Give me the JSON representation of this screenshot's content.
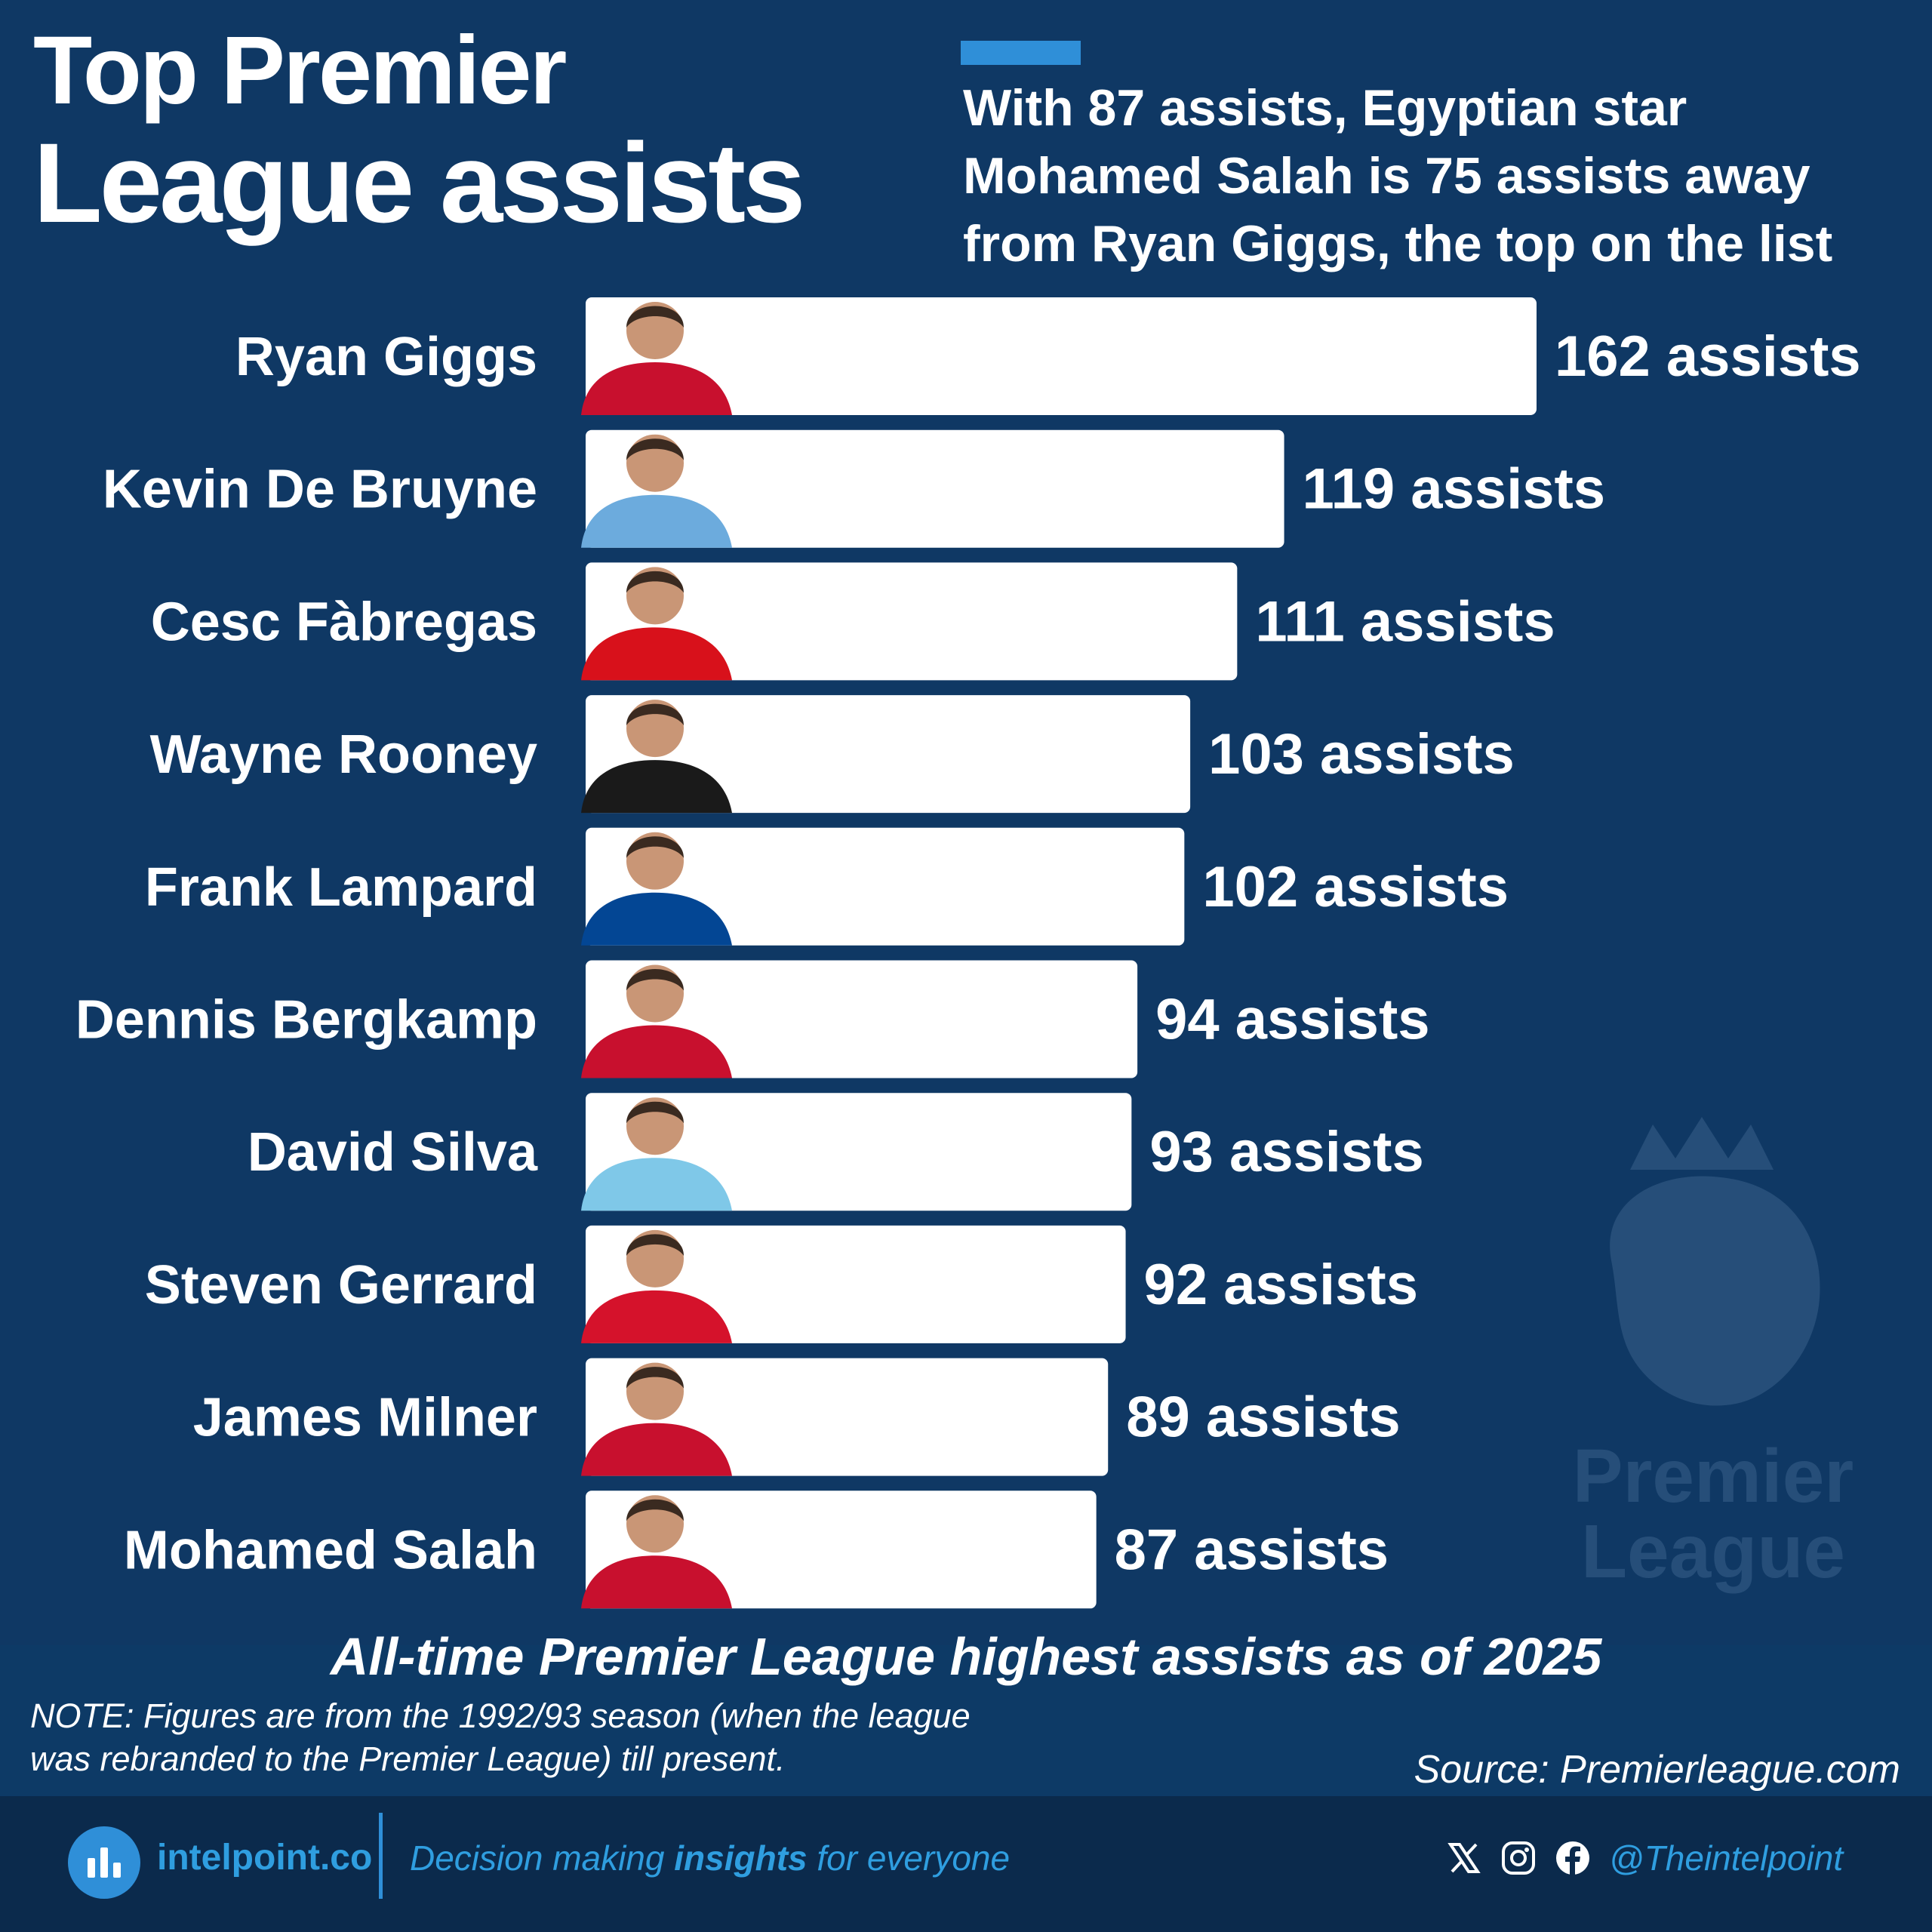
{
  "header": {
    "title_line1": "Top Premier",
    "title_line2": "League assists",
    "subtitle_lines": [
      "With 87 assists, Egyptian star",
      "Mohamed Salah is 75 assists away",
      "from Ryan Giggs, the top on the list"
    ]
  },
  "chart_data": {
    "type": "bar",
    "orientation": "horizontal",
    "categories": [
      "Ryan Giggs",
      "Kevin De Bruyne",
      "Cesc Fàbregas",
      "Wayne Rooney",
      "Frank Lampard",
      "Dennis Bergkamp",
      "David Silva",
      "Steven Gerrard",
      "James Milner",
      "Mohamed Salah"
    ],
    "values": [
      162,
      119,
      111,
      103,
      102,
      94,
      93,
      92,
      89,
      87
    ],
    "value_labels": [
      "162 assists",
      "119 assists",
      "111 assists",
      "103 assists",
      "102 assists",
      "94 assists",
      "93 assists",
      "92 assists",
      "89 assists",
      "87 assists"
    ],
    "jersey_colors": [
      "#c8102e",
      "#6cabdd",
      "#d8111b",
      "#1a1a1a",
      "#034694",
      "#c8102e",
      "#7fc8e8",
      "#d5122b",
      "#c8102e",
      "#c8102e"
    ],
    "bar_color": "#ffffff",
    "xlim": [
      0,
      162
    ],
    "grid": false,
    "legend": "none",
    "caption": "All-time Premier League highest assists as of 2025"
  },
  "notes": {
    "note_lines": [
      "NOTE: Figures are from the 1992/93 season (when the league",
      "was rebranded to the Premier League) till present."
    ],
    "source": "Source: Premierleague.com"
  },
  "watermark": {
    "line1": "Premier",
    "line2": "League",
    "icon": "premier-league-lion-icon"
  },
  "footer": {
    "brand": "intelpoint.co",
    "tagline_pre": "Decision making ",
    "tagline_bold": "insights",
    "tagline_post": " for everyone",
    "handle": "@Theintelpoint",
    "icons": [
      "x-logo-icon",
      "instagram-icon",
      "facebook-icon"
    ]
  }
}
